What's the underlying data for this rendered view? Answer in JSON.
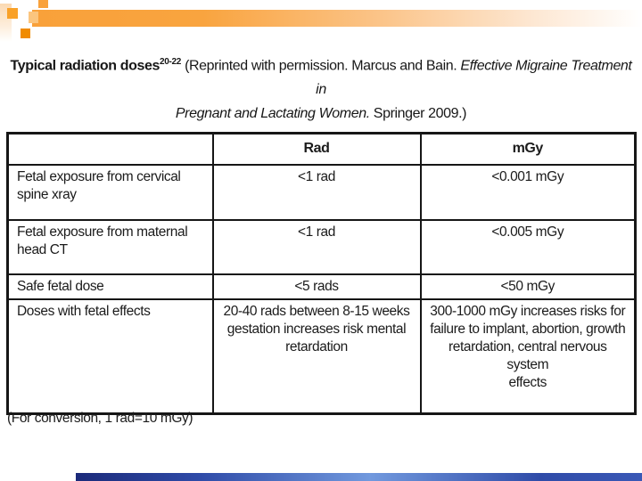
{
  "title": {
    "main": "Typical radiation doses",
    "superscript": "20-22",
    "credit_prefix": " (Reprinted with permission. Marcus and Bain. ",
    "book_line1": "Effective Migraine Treatment in",
    "book_line2": "Pregnant and Lactating Women.",
    "credit_suffix": " Springer 2009.)"
  },
  "table": {
    "headers": [
      "",
      "Rad",
      "mGy"
    ],
    "rows": [
      {
        "label": "Fetal exposure from cervical\nspine xray",
        "rad": "<1 rad",
        "mgy": "<0.001 mGy"
      },
      {
        "label": "Fetal exposure from maternal\nhead CT",
        "rad": "<1 rad",
        "mgy": "<0.005 mGy"
      },
      {
        "label": "Safe fetal dose",
        "rad": "<5 rads",
        "mgy": "<50 mGy"
      },
      {
        "label": "Doses with fetal effects",
        "rad": "20-40 rads between 8-15 weeks\ngestation increases risk mental\nretardation",
        "mgy": "300-1000 mGy increases risks for\nfailure to implant, abortion, growth\nretardation, central nervous system\neffects"
      }
    ]
  },
  "footnote": "(For conversion, 1 rad=10 mGy)",
  "colors": {
    "accent_orange": "#F9A13A",
    "accent_orange_dark": "#F08B00",
    "accent_orange_light": "#FBC57E",
    "accent_blue_dark": "#1B2A7A",
    "accent_blue_light": "#7199DE",
    "table_border": "#161616"
  }
}
